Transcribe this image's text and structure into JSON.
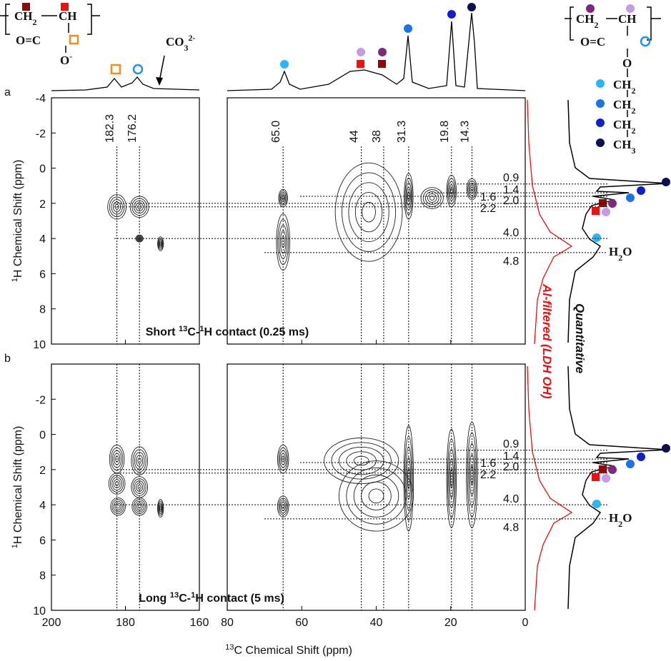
{
  "chart_data": [
    {
      "type": "contour",
      "panel": "a",
      "annotation": [
        {
          "text": "Short "
        },
        {
          "text": "13",
          "sup": true
        },
        {
          "text": "C-"
        },
        {
          "text": "1",
          "sup": true
        },
        {
          "text": "H contact (0.25 ms)"
        }
      ],
      "y_label": [
        {
          "text": "1",
          "sup": true
        },
        {
          "text": "H Chemical Shift (ppm)"
        }
      ],
      "ylim": [
        -4,
        10
      ],
      "yticks": [
        -4,
        -2,
        0,
        2,
        4,
        6,
        8,
        10
      ],
      "x_segments": [
        {
          "xlim": [
            200,
            160
          ],
          "xticks": [
            200,
            180,
            160
          ]
        },
        {
          "xlim": [
            80,
            0
          ],
          "xticks": [
            80,
            60,
            40,
            20,
            0
          ]
        }
      ],
      "carbon_shifts": [
        {
          "value": 182.3,
          "label": "182.3"
        },
        {
          "value": 176.2,
          "label": "176.2"
        },
        {
          "value": 65,
          "label": "65.0"
        },
        44,
        38,
        31.3,
        19.8,
        14.3
      ],
      "proton_shifts": [
        0.9,
        1.4,
        1.6,
        {
          "value": 2,
          "label": "2.0"
        },
        2.2,
        {
          "value": 4,
          "label": "4.0"
        },
        4.8
      ],
      "cross_peaks": [
        {
          "x": 182.3,
          "y": 2.2,
          "dx": 2.5,
          "dy": 0.7
        },
        {
          "x": 176.2,
          "y": 2.2,
          "dx": 2.5,
          "dy": 0.6
        },
        {
          "x": 170.5,
          "y": 4.3,
          "dx": 0.8,
          "dy": 0.4
        },
        {
          "x": 176.2,
          "y": 4,
          "dx": 1,
          "dy": 0.2
        },
        {
          "x": 65,
          "y": 1.7,
          "dx": 1.2,
          "dy": 0.5
        },
        {
          "x": 65,
          "y": 4.2,
          "dx": 1.8,
          "dy": 1.6
        },
        {
          "x": 42,
          "y": 2.5,
          "dx": 9,
          "dy": 2.8
        },
        {
          "x": 31.3,
          "y": 1.6,
          "dx": 1.2,
          "dy": 1.3
        },
        {
          "x": 25,
          "y": 1.7,
          "dx": 3,
          "dy": 0.6
        },
        {
          "x": 19.8,
          "y": 1.3,
          "dx": 1.3,
          "dy": 0.9
        },
        {
          "x": 14.3,
          "y": 1.2,
          "dx": 1.4,
          "dy": 0.6
        }
      ]
    },
    {
      "type": "contour",
      "panel": "b",
      "annotation": [
        {
          "text": "Long "
        },
        {
          "text": "13",
          "sup": true
        },
        {
          "text": "C-"
        },
        {
          "text": "1",
          "sup": true
        },
        {
          "text": "H contact (5 ms)"
        }
      ],
      "y_label": [
        {
          "text": "1",
          "sup": true
        },
        {
          "text": "H Chemical Shift (ppm)"
        }
      ],
      "x_label": [
        {
          "text": "13",
          "sup": true
        },
        {
          "text": "C Chemical Shift (ppm)"
        }
      ],
      "ylim": [
        -4,
        10
      ],
      "yticks": [
        -2,
        0,
        2,
        4,
        6,
        8,
        10
      ],
      "x_segments": [
        {
          "xlim": [
            200,
            160
          ],
          "xticks": [
            200,
            180,
            160
          ]
        },
        {
          "xlim": [
            80,
            0
          ],
          "xticks": [
            80,
            60,
            40,
            20,
            0
          ]
        }
      ],
      "proton_shifts": [
        0.9,
        1.4,
        1.6,
        {
          "value": 2,
          "label": "2.0"
        },
        2.2,
        {
          "value": 4,
          "label": "4.0"
        },
        4.8
      ],
      "cross_peaks": [
        {
          "x": 182.3,
          "y": 1.4,
          "dx": 2,
          "dy": 0.8
        },
        {
          "x": 176.2,
          "y": 1.5,
          "dx": 2.2,
          "dy": 0.8
        },
        {
          "x": 182.3,
          "y": 2.8,
          "dx": 2.2,
          "dy": 0.6
        },
        {
          "x": 176.2,
          "y": 3,
          "dx": 2.2,
          "dy": 0.6
        },
        {
          "x": 182,
          "y": 4.1,
          "dx": 2,
          "dy": 0.5
        },
        {
          "x": 176.2,
          "y": 4.1,
          "dx": 2,
          "dy": 0.5
        },
        {
          "x": 170.5,
          "y": 4.2,
          "dx": 0.8,
          "dy": 0.5
        },
        {
          "x": 65,
          "y": 1.4,
          "dx": 1.5,
          "dy": 0.8
        },
        {
          "x": 65,
          "y": 4.1,
          "dx": 1.5,
          "dy": 0.6
        },
        {
          "x": 44,
          "y": 1.5,
          "dx": 10,
          "dy": 1.3
        },
        {
          "x": 40,
          "y": 3.5,
          "dx": 10,
          "dy": 2
        },
        {
          "x": 31.3,
          "y": 2.5,
          "dx": 1.3,
          "dy": 3
        },
        {
          "x": 19.8,
          "y": 2.5,
          "dx": 1.3,
          "dy": 2.8
        },
        {
          "x": 14.3,
          "y": 2.3,
          "dx": 1.5,
          "dy": 3
        }
      ]
    }
  ],
  "projection_labels": {
    "quantitative": "Quantitative",
    "al_filtered": "Al-filtered (LDH OH)"
  },
  "water": [
    {
      "text": "H"
    },
    {
      "text": "2",
      "sub": true
    },
    {
      "text": "O"
    }
  ],
  "carbonate": [
    {
      "text": "CO"
    },
    {
      "text": "3",
      "sub": true
    },
    {
      "text": "2-",
      "sup": true
    }
  ],
  "structures": {
    "left": [
      [
        {
          "text": "CH"
        },
        {
          "text": "2",
          "sub": true
        }
      ],
      [
        {
          "text": "CH"
        }
      ],
      [
        {
          "text": "O=C"
        }
      ],
      [
        {
          "text": "O"
        },
        {
          "text": "-",
          "sup": true
        }
      ]
    ],
    "right": [
      [
        {
          "text": "CH"
        },
        {
          "text": "2",
          "sub": true
        }
      ],
      [
        {
          "text": "CH"
        }
      ],
      [
        {
          "text": "O=C"
        }
      ],
      [
        {
          "text": "O"
        }
      ],
      [
        {
          "text": "CH"
        },
        {
          "text": "2",
          "sub": true
        }
      ],
      [
        {
          "text": "CH"
        },
        {
          "text": "2",
          "sub": true
        }
      ],
      [
        {
          "text": "CH"
        },
        {
          "text": "2",
          "sub": true
        }
      ],
      [
        {
          "text": "CH"
        },
        {
          "text": "3",
          "sub": true
        }
      ]
    ]
  }
}
